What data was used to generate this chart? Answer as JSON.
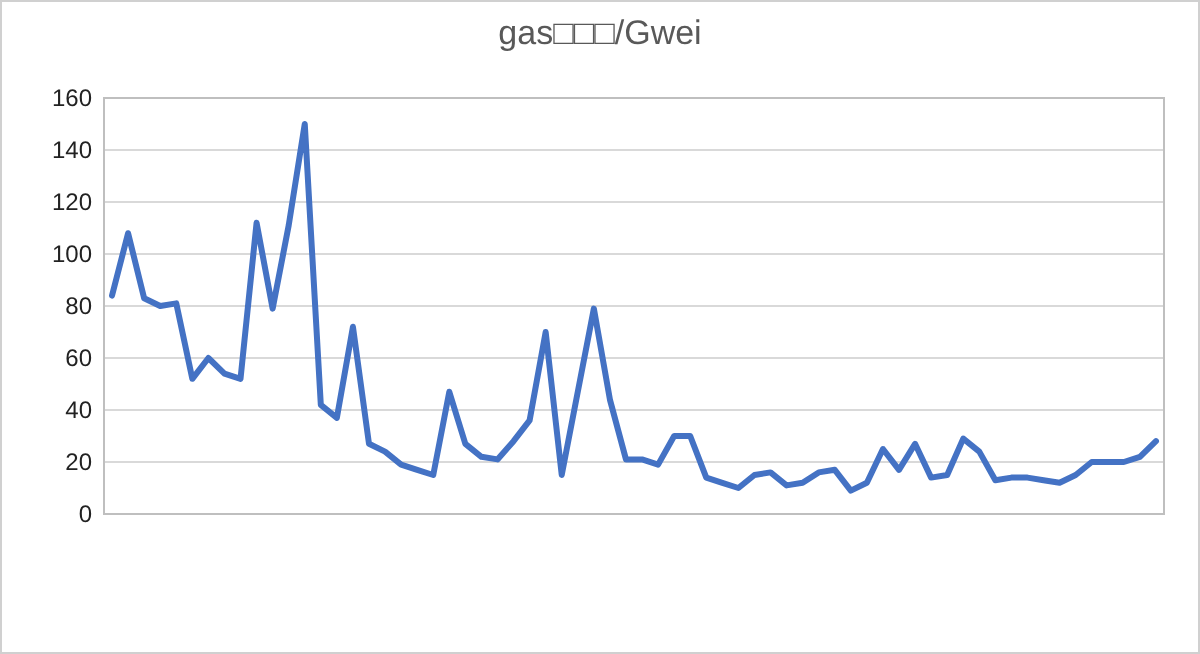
{
  "chart_data": {
    "type": "line",
    "title": "gas□□□/Gwei",
    "categories": [
      null,
      null,
      null,
      null,
      null,
      null,
      null,
      null,
      null,
      null,
      null,
      null,
      null,
      null,
      null,
      null,
      null,
      null,
      null,
      null,
      null,
      null,
      null,
      null,
      null,
      null,
      null,
      null,
      null,
      null,
      null,
      null,
      null,
      null,
      null,
      null,
      null,
      null,
      null,
      null,
      null,
      null,
      null,
      null,
      null,
      null,
      null,
      null,
      null,
      null,
      null,
      null,
      null,
      null,
      null,
      null,
      null,
      null,
      null,
      null,
      null,
      null,
      null,
      null,
      null,
      null
    ],
    "series": [
      {
        "color": "#4472c4",
        "values": [
          84,
          108,
          83,
          80,
          81,
          52,
          60,
          54,
          52,
          112,
          79,
          111,
          150,
          42,
          37,
          72,
          27,
          24,
          19,
          17,
          15,
          47,
          27,
          22,
          21,
          28,
          36,
          70,
          15,
          47,
          79,
          44,
          21,
          21,
          19,
          30,
          30,
          14,
          12,
          10,
          15,
          16,
          11,
          12,
          16,
          17,
          9,
          12,
          25,
          17,
          27,
          14,
          15,
          29,
          24,
          13,
          14,
          14,
          13,
          12,
          15,
          20,
          20,
          20,
          22,
          28
        ]
      }
    ],
    "ylim": [
      0,
      160
    ],
    "yticks": [
      0,
      20,
      40,
      60,
      80,
      100,
      120,
      140,
      160
    ],
    "grid": "y",
    "marker": "none",
    "line_style": "solid"
  }
}
